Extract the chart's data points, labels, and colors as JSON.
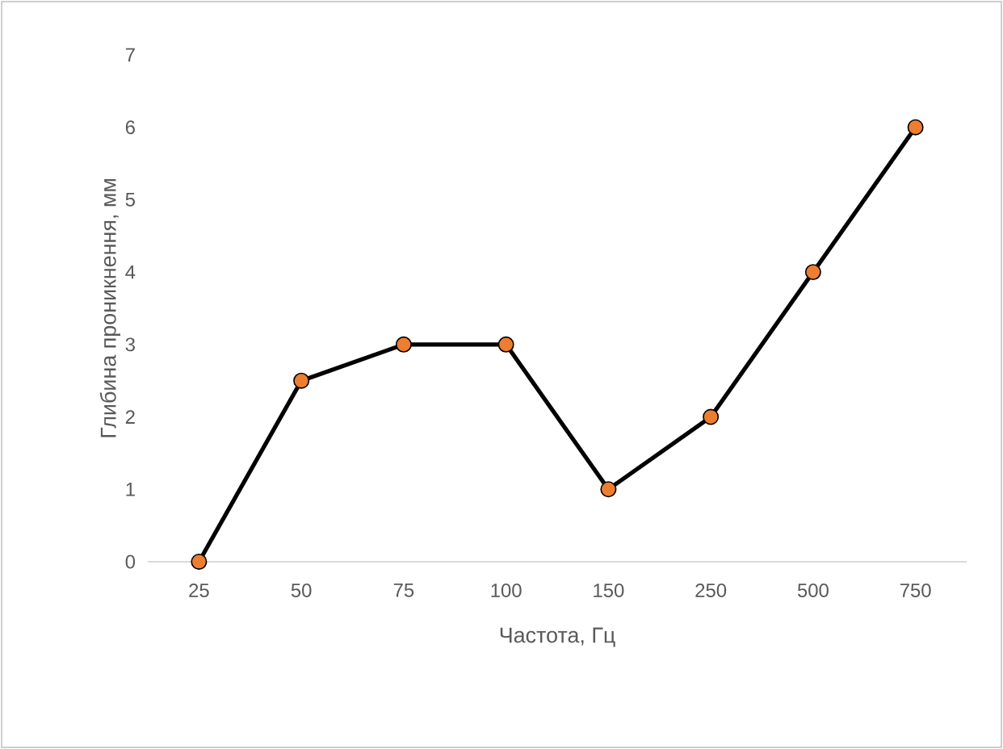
{
  "chart_data": {
    "type": "line",
    "xlabel": "Частота, Гц",
    "ylabel": "Глибина проникнення, мм",
    "categories": [
      "25",
      "50",
      "75",
      "100",
      "150",
      "250",
      "500",
      "750"
    ],
    "values": [
      0,
      2.5,
      3,
      3,
      1,
      2,
      4,
      6
    ],
    "color": "#000000",
    "marker": "circle",
    "line_style": "solid",
    "ylim": [
      0,
      7
    ],
    "yticks": [
      0,
      1,
      2,
      3,
      4,
      5,
      6,
      7
    ]
  }
}
